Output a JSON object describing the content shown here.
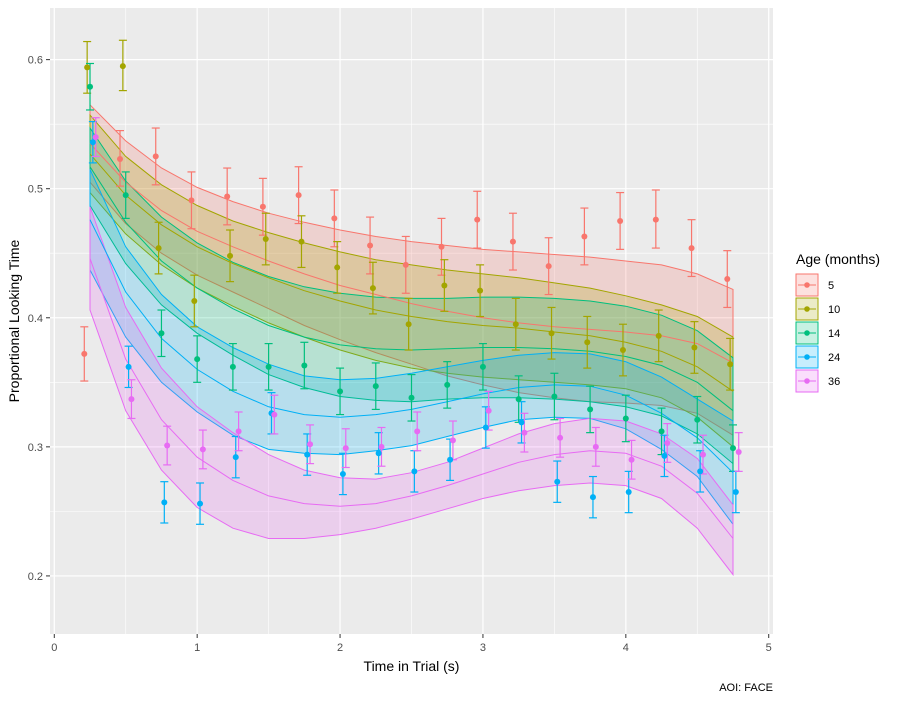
{
  "chart_data": {
    "type": "line",
    "xlabel": "Time in Trial (s)",
    "ylabel": "Proportional Looking Time",
    "caption": "AOI: FACE",
    "xlim": [
      -0.03,
      5.03
    ],
    "ylim": [
      0.155,
      0.64
    ],
    "xticks": [
      "0",
      "1",
      "2",
      "3",
      "4",
      "5"
    ],
    "xtick_values": [
      0,
      1,
      2,
      3,
      4,
      5
    ],
    "yticks": [
      "0.2",
      "0.3",
      "0.4",
      "0.5",
      "0.6"
    ],
    "ytick_values": [
      0.2,
      0.3,
      0.4,
      0.5,
      0.6
    ],
    "grid": true,
    "background": "#ebebeb",
    "legend": {
      "title": "Age (months)",
      "position": "right"
    },
    "fit_x": [
      0.25,
      0.5,
      0.75,
      1.0,
      1.25,
      1.5,
      1.75,
      2.0,
      2.25,
      2.5,
      2.75,
      3.0,
      3.25,
      3.5,
      3.75,
      4.0,
      4.25,
      4.5,
      4.75
    ],
    "series": [
      {
        "name": "5",
        "color": "#F8766D",
        "points": [
          {
            "x": 0.21,
            "y": 0.372,
            "lo": 0.351,
            "hi": 0.393
          },
          {
            "x": 0.46,
            "y": 0.523,
            "lo": 0.502,
            "hi": 0.545
          },
          {
            "x": 0.71,
            "y": 0.525,
            "lo": 0.503,
            "hi": 0.547
          },
          {
            "x": 0.96,
            "y": 0.491,
            "lo": 0.469,
            "hi": 0.513
          },
          {
            "x": 1.21,
            "y": 0.494,
            "lo": 0.472,
            "hi": 0.516
          },
          {
            "x": 1.46,
            "y": 0.486,
            "lo": 0.464,
            "hi": 0.508
          },
          {
            "x": 1.71,
            "y": 0.495,
            "lo": 0.473,
            "hi": 0.517
          },
          {
            "x": 1.96,
            "y": 0.477,
            "lo": 0.455,
            "hi": 0.499
          },
          {
            "x": 2.21,
            "y": 0.456,
            "lo": 0.434,
            "hi": 0.478
          },
          {
            "x": 2.46,
            "y": 0.441,
            "lo": 0.419,
            "hi": 0.463
          },
          {
            "x": 2.71,
            "y": 0.455,
            "lo": 0.433,
            "hi": 0.477
          },
          {
            "x": 2.96,
            "y": 0.476,
            "lo": 0.454,
            "hi": 0.498
          },
          {
            "x": 3.21,
            "y": 0.459,
            "lo": 0.437,
            "hi": 0.481
          },
          {
            "x": 3.46,
            "y": 0.44,
            "lo": 0.418,
            "hi": 0.462
          },
          {
            "x": 3.71,
            "y": 0.463,
            "lo": 0.441,
            "hi": 0.485
          },
          {
            "x": 3.96,
            "y": 0.475,
            "lo": 0.453,
            "hi": 0.497
          },
          {
            "x": 4.21,
            "y": 0.476,
            "lo": 0.454,
            "hi": 0.499
          },
          {
            "x": 4.46,
            "y": 0.454,
            "lo": 0.432,
            "hi": 0.476
          },
          {
            "x": 4.71,
            "y": 0.43,
            "lo": 0.408,
            "hi": 0.452
          }
        ],
        "fit": [
          0.535,
          0.505,
          0.483,
          0.467,
          0.455,
          0.444,
          0.434,
          0.425,
          0.418,
          0.411,
          0.405,
          0.4,
          0.396,
          0.393,
          0.391,
          0.389,
          0.386,
          0.38,
          0.365
        ],
        "upper": [
          0.565,
          0.537,
          0.516,
          0.501,
          0.49,
          0.481,
          0.474,
          0.468,
          0.463,
          0.459,
          0.456,
          0.453,
          0.451,
          0.449,
          0.447,
          0.444,
          0.441,
          0.434,
          0.422
        ],
        "lower": [
          0.505,
          0.473,
          0.45,
          0.433,
          0.42,
          0.407,
          0.394,
          0.383,
          0.373,
          0.364,
          0.355,
          0.348,
          0.342,
          0.338,
          0.335,
          0.334,
          0.332,
          0.326,
          0.309
        ]
      },
      {
        "name": "10",
        "color": "#A3A500",
        "points": [
          {
            "x": 0.23,
            "y": 0.594,
            "lo": 0.574,
            "hi": 0.614
          },
          {
            "x": 0.48,
            "y": 0.595,
            "lo": 0.576,
            "hi": 0.615
          },
          {
            "x": 0.73,
            "y": 0.454,
            "lo": 0.434,
            "hi": 0.474
          },
          {
            "x": 0.98,
            "y": 0.413,
            "lo": 0.393,
            "hi": 0.433
          },
          {
            "x": 1.23,
            "y": 0.448,
            "lo": 0.428,
            "hi": 0.468
          },
          {
            "x": 1.48,
            "y": 0.461,
            "lo": 0.441,
            "hi": 0.481
          },
          {
            "x": 1.73,
            "y": 0.459,
            "lo": 0.439,
            "hi": 0.479
          },
          {
            "x": 1.98,
            "y": 0.439,
            "lo": 0.419,
            "hi": 0.459
          },
          {
            "x": 2.23,
            "y": 0.423,
            "lo": 0.403,
            "hi": 0.443
          },
          {
            "x": 2.48,
            "y": 0.395,
            "lo": 0.375,
            "hi": 0.415
          },
          {
            "x": 2.73,
            "y": 0.425,
            "lo": 0.405,
            "hi": 0.445
          },
          {
            "x": 2.98,
            "y": 0.421,
            "lo": 0.401,
            "hi": 0.441
          },
          {
            "x": 3.23,
            "y": 0.395,
            "lo": 0.375,
            "hi": 0.415
          },
          {
            "x": 3.48,
            "y": 0.388,
            "lo": 0.368,
            "hi": 0.408
          },
          {
            "x": 3.73,
            "y": 0.381,
            "lo": 0.361,
            "hi": 0.401
          },
          {
            "x": 3.98,
            "y": 0.375,
            "lo": 0.355,
            "hi": 0.395
          },
          {
            "x": 4.23,
            "y": 0.386,
            "lo": 0.366,
            "hi": 0.406
          },
          {
            "x": 4.48,
            "y": 0.377,
            "lo": 0.357,
            "hi": 0.397
          },
          {
            "x": 4.73,
            "y": 0.364,
            "lo": 0.344,
            "hi": 0.384
          }
        ],
        "fit": [
          0.527,
          0.495,
          0.472,
          0.455,
          0.442,
          0.431,
          0.421,
          0.413,
          0.406,
          0.401,
          0.397,
          0.394,
          0.392,
          0.389,
          0.386,
          0.381,
          0.374,
          0.362,
          0.343
        ],
        "upper": [
          0.557,
          0.525,
          0.503,
          0.487,
          0.475,
          0.466,
          0.458,
          0.451,
          0.445,
          0.441,
          0.437,
          0.434,
          0.431,
          0.427,
          0.423,
          0.417,
          0.41,
          0.401,
          0.385
        ],
        "lower": [
          0.497,
          0.465,
          0.441,
          0.423,
          0.409,
          0.396,
          0.385,
          0.375,
          0.367,
          0.361,
          0.357,
          0.354,
          0.352,
          0.35,
          0.348,
          0.345,
          0.338,
          0.323,
          0.3
        ]
      },
      {
        "name": "14",
        "color": "#00BF7D",
        "points": [
          {
            "x": 0.25,
            "y": 0.579,
            "lo": 0.561,
            "hi": 0.597
          },
          {
            "x": 0.5,
            "y": 0.495,
            "lo": 0.477,
            "hi": 0.513
          },
          {
            "x": 0.75,
            "y": 0.388,
            "lo": 0.37,
            "hi": 0.406
          },
          {
            "x": 1.0,
            "y": 0.368,
            "lo": 0.35,
            "hi": 0.386
          },
          {
            "x": 1.25,
            "y": 0.362,
            "lo": 0.344,
            "hi": 0.38
          },
          {
            "x": 1.5,
            "y": 0.362,
            "lo": 0.344,
            "hi": 0.38
          },
          {
            "x": 1.75,
            "y": 0.363,
            "lo": 0.345,
            "hi": 0.381
          },
          {
            "x": 2.0,
            "y": 0.343,
            "lo": 0.325,
            "hi": 0.361
          },
          {
            "x": 2.25,
            "y": 0.347,
            "lo": 0.329,
            "hi": 0.365
          },
          {
            "x": 2.5,
            "y": 0.338,
            "lo": 0.32,
            "hi": 0.356
          },
          {
            "x": 2.75,
            "y": 0.348,
            "lo": 0.33,
            "hi": 0.366
          },
          {
            "x": 3.0,
            "y": 0.362,
            "lo": 0.344,
            "hi": 0.38
          },
          {
            "x": 3.25,
            "y": 0.337,
            "lo": 0.319,
            "hi": 0.355
          },
          {
            "x": 3.5,
            "y": 0.339,
            "lo": 0.321,
            "hi": 0.357
          },
          {
            "x": 3.75,
            "y": 0.329,
            "lo": 0.311,
            "hi": 0.347
          },
          {
            "x": 4.0,
            "y": 0.322,
            "lo": 0.304,
            "hi": 0.34
          },
          {
            "x": 4.25,
            "y": 0.312,
            "lo": 0.294,
            "hi": 0.33
          },
          {
            "x": 4.5,
            "y": 0.321,
            "lo": 0.303,
            "hi": 0.339
          },
          {
            "x": 4.75,
            "y": 0.299,
            "lo": 0.281,
            "hi": 0.317
          }
        ],
        "fit": [
          0.517,
          0.474,
          0.444,
          0.423,
          0.407,
          0.394,
          0.385,
          0.379,
          0.376,
          0.375,
          0.376,
          0.377,
          0.377,
          0.376,
          0.374,
          0.37,
          0.363,
          0.35,
          0.328
        ],
        "upper": [
          0.547,
          0.506,
          0.478,
          0.458,
          0.443,
          0.432,
          0.424,
          0.419,
          0.416,
          0.415,
          0.415,
          0.416,
          0.416,
          0.415,
          0.413,
          0.409,
          0.402,
          0.39,
          0.369
        ],
        "lower": [
          0.487,
          0.442,
          0.41,
          0.388,
          0.371,
          0.356,
          0.346,
          0.339,
          0.336,
          0.335,
          0.337,
          0.338,
          0.338,
          0.337,
          0.335,
          0.331,
          0.324,
          0.31,
          0.287
        ]
      },
      {
        "name": "24",
        "color": "#00B0F6",
        "points": [
          {
            "x": 0.27,
            "y": 0.536,
            "lo": 0.52,
            "hi": 0.552
          },
          {
            "x": 0.52,
            "y": 0.362,
            "lo": 0.346,
            "hi": 0.378
          },
          {
            "x": 0.77,
            "y": 0.257,
            "lo": 0.241,
            "hi": 0.273
          },
          {
            "x": 1.02,
            "y": 0.256,
            "lo": 0.24,
            "hi": 0.272
          },
          {
            "x": 1.27,
            "y": 0.292,
            "lo": 0.276,
            "hi": 0.308
          },
          {
            "x": 1.52,
            "y": 0.326,
            "lo": 0.31,
            "hi": 0.342
          },
          {
            "x": 1.77,
            "y": 0.294,
            "lo": 0.278,
            "hi": 0.31
          },
          {
            "x": 2.02,
            "y": 0.279,
            "lo": 0.263,
            "hi": 0.295
          },
          {
            "x": 2.27,
            "y": 0.295,
            "lo": 0.279,
            "hi": 0.311
          },
          {
            "x": 2.52,
            "y": 0.281,
            "lo": 0.265,
            "hi": 0.297
          },
          {
            "x": 2.77,
            "y": 0.29,
            "lo": 0.274,
            "hi": 0.306
          },
          {
            "x": 3.02,
            "y": 0.315,
            "lo": 0.299,
            "hi": 0.331
          },
          {
            "x": 3.27,
            "y": 0.319,
            "lo": 0.303,
            "hi": 0.335
          },
          {
            "x": 3.52,
            "y": 0.273,
            "lo": 0.257,
            "hi": 0.289
          },
          {
            "x": 3.77,
            "y": 0.261,
            "lo": 0.245,
            "hi": 0.277
          },
          {
            "x": 4.02,
            "y": 0.265,
            "lo": 0.249,
            "hi": 0.281
          },
          {
            "x": 4.27,
            "y": 0.293,
            "lo": 0.277,
            "hi": 0.309
          },
          {
            "x": 4.52,
            "y": 0.281,
            "lo": 0.265,
            "hi": 0.297
          },
          {
            "x": 4.77,
            "y": 0.265,
            "lo": 0.249,
            "hi": 0.281
          }
        ],
        "fit": [
          0.476,
          0.42,
          0.384,
          0.36,
          0.343,
          0.331,
          0.325,
          0.323,
          0.325,
          0.329,
          0.335,
          0.341,
          0.346,
          0.348,
          0.347,
          0.34,
          0.326,
          0.307,
          0.28
        ],
        "upper": [
          0.515,
          0.455,
          0.418,
          0.393,
          0.377,
          0.364,
          0.355,
          0.352,
          0.353,
          0.357,
          0.362,
          0.367,
          0.371,
          0.373,
          0.372,
          0.366,
          0.354,
          0.337,
          0.32
        ],
        "lower": [
          0.437,
          0.385,
          0.35,
          0.327,
          0.309,
          0.298,
          0.295,
          0.294,
          0.297,
          0.301,
          0.308,
          0.315,
          0.321,
          0.323,
          0.322,
          0.314,
          0.298,
          0.277,
          0.24
        ]
      },
      {
        "name": "36",
        "color": "#E76BF3",
        "points": [
          {
            "x": 0.29,
            "y": 0.54,
            "lo": 0.525,
            "hi": 0.555
          },
          {
            "x": 0.54,
            "y": 0.337,
            "lo": 0.322,
            "hi": 0.352
          },
          {
            "x": 0.79,
            "y": 0.301,
            "lo": 0.286,
            "hi": 0.316
          },
          {
            "x": 1.04,
            "y": 0.298,
            "lo": 0.283,
            "hi": 0.313
          },
          {
            "x": 1.29,
            "y": 0.312,
            "lo": 0.297,
            "hi": 0.327
          },
          {
            "x": 1.54,
            "y": 0.325,
            "lo": 0.31,
            "hi": 0.34
          },
          {
            "x": 1.79,
            "y": 0.302,
            "lo": 0.287,
            "hi": 0.317
          },
          {
            "x": 2.04,
            "y": 0.299,
            "lo": 0.284,
            "hi": 0.314
          },
          {
            "x": 2.29,
            "y": 0.3,
            "lo": 0.285,
            "hi": 0.315
          },
          {
            "x": 2.54,
            "y": 0.312,
            "lo": 0.297,
            "hi": 0.327
          },
          {
            "x": 2.79,
            "y": 0.305,
            "lo": 0.29,
            "hi": 0.32
          },
          {
            "x": 3.04,
            "y": 0.328,
            "lo": 0.313,
            "hi": 0.343
          },
          {
            "x": 3.29,
            "y": 0.311,
            "lo": 0.296,
            "hi": 0.326
          },
          {
            "x": 3.54,
            "y": 0.307,
            "lo": 0.292,
            "hi": 0.322
          },
          {
            "x": 3.79,
            "y": 0.3,
            "lo": 0.285,
            "hi": 0.315
          },
          {
            "x": 4.04,
            "y": 0.29,
            "lo": 0.275,
            "hi": 0.305
          },
          {
            "x": 4.29,
            "y": 0.303,
            "lo": 0.288,
            "hi": 0.318
          },
          {
            "x": 4.54,
            "y": 0.294,
            "lo": 0.279,
            "hi": 0.309
          },
          {
            "x": 4.79,
            "y": 0.296,
            "lo": 0.281,
            "hi": 0.311
          }
        ],
        "fit": [
          0.446,
          0.368,
          0.321,
          0.292,
          0.274,
          0.262,
          0.256,
          0.254,
          0.256,
          0.262,
          0.27,
          0.279,
          0.288,
          0.294,
          0.297,
          0.295,
          0.285,
          0.264,
          0.229
        ],
        "upper": [
          0.486,
          0.408,
          0.361,
          0.331,
          0.311,
          0.294,
          0.282,
          0.276,
          0.275,
          0.28,
          0.288,
          0.299,
          0.31,
          0.318,
          0.322,
          0.32,
          0.31,
          0.291,
          0.255
        ],
        "lower": [
          0.406,
          0.328,
          0.282,
          0.253,
          0.237,
          0.229,
          0.229,
          0.232,
          0.237,
          0.244,
          0.252,
          0.26,
          0.266,
          0.27,
          0.272,
          0.27,
          0.26,
          0.237,
          0.201
        ]
      }
    ]
  }
}
